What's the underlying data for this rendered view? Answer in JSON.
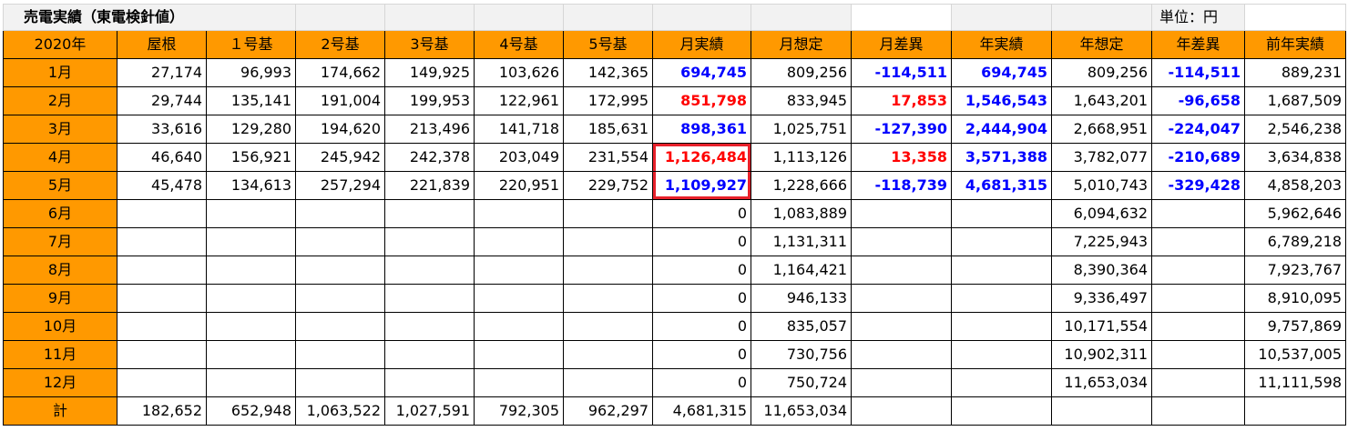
{
  "title": "売電実績（東電検針値）",
  "unit": "単位：円",
  "headers": [
    "2020年",
    "屋根",
    "１号基",
    "2号基",
    "3号基",
    "4号基",
    "5号基",
    "月実績",
    "月想定",
    "月差異",
    "年実績",
    "年想定",
    "年差異",
    "前年実績"
  ],
  "rows": [
    {
      "month": "1月",
      "cells": [
        "27,174",
        "96,993",
        "174,662",
        "149,925",
        "103,626",
        "142,365",
        "694,745",
        "809,256",
        "-114,511",
        "694,745",
        "809,256",
        "-114,511",
        "889,231"
      ]
    },
    {
      "month": "2月",
      "cells": [
        "29,744",
        "135,141",
        "191,004",
        "199,953",
        "122,961",
        "172,995",
        "851,798",
        "833,945",
        "17,853",
        "1,546,543",
        "1,643,201",
        "-96,658",
        "1,687,509"
      ]
    },
    {
      "month": "3月",
      "cells": [
        "33,616",
        "129,280",
        "194,620",
        "213,496",
        "141,718",
        "185,631",
        "898,361",
        "1,025,751",
        "-127,390",
        "2,444,904",
        "2,668,951",
        "-224,047",
        "2,546,238"
      ]
    },
    {
      "month": "4月",
      "cells": [
        "46,640",
        "156,921",
        "245,942",
        "242,378",
        "203,049",
        "231,554",
        "1,126,484",
        "1,113,126",
        "13,358",
        "3,571,388",
        "3,782,077",
        "-210,689",
        "3,634,838"
      ]
    },
    {
      "month": "5月",
      "cells": [
        "45,478",
        "134,613",
        "257,294",
        "221,839",
        "220,951",
        "229,752",
        "1,109,927",
        "1,228,666",
        "-118,739",
        "4,681,315",
        "5,010,743",
        "-329,428",
        "4,858,203"
      ]
    },
    {
      "month": "6月",
      "cells": [
        "",
        "",
        "",
        "",
        "",
        "",
        "0",
        "1,083,889",
        "",
        "",
        "6,094,632",
        "",
        "5,962,646"
      ]
    },
    {
      "month": "7月",
      "cells": [
        "",
        "",
        "",
        "",
        "",
        "",
        "0",
        "1,131,311",
        "",
        "",
        "7,225,943",
        "",
        "6,789,218"
      ]
    },
    {
      "month": "8月",
      "cells": [
        "",
        "",
        "",
        "",
        "",
        "",
        "0",
        "1,164,421",
        "",
        "",
        "8,390,364",
        "",
        "7,923,767"
      ]
    },
    {
      "month": "9月",
      "cells": [
        "",
        "",
        "",
        "",
        "",
        "",
        "0",
        "946,133",
        "",
        "",
        "9,336,497",
        "",
        "8,910,095"
      ]
    },
    {
      "month": "10月",
      "cells": [
        "",
        "",
        "",
        "",
        "",
        "",
        "0",
        "835,057",
        "",
        "",
        "10,171,554",
        "",
        "9,757,869"
      ]
    },
    {
      "month": "11月",
      "cells": [
        "",
        "",
        "",
        "",
        "",
        "",
        "0",
        "730,756",
        "",
        "",
        "10,902,311",
        "",
        "10,537,005"
      ]
    },
    {
      "month": "12月",
      "cells": [
        "",
        "",
        "",
        "",
        "",
        "",
        "0",
        "750,724",
        "",
        "",
        "11,653,034",
        "",
        "11,111,598"
      ]
    },
    {
      "month": "計",
      "cells": [
        "182,652",
        "652,948",
        "1,063,522",
        "1,027,591",
        "792,305",
        "962,297",
        "4,681,315",
        "11,653,034",
        "",
        "",
        "",
        "",
        ""
      ]
    }
  ],
  "colors": {
    "header_fill": "#ff9900",
    "positive": "#ff0000",
    "negative": "#0000ff",
    "highlight_box": "#e8212b"
  }
}
